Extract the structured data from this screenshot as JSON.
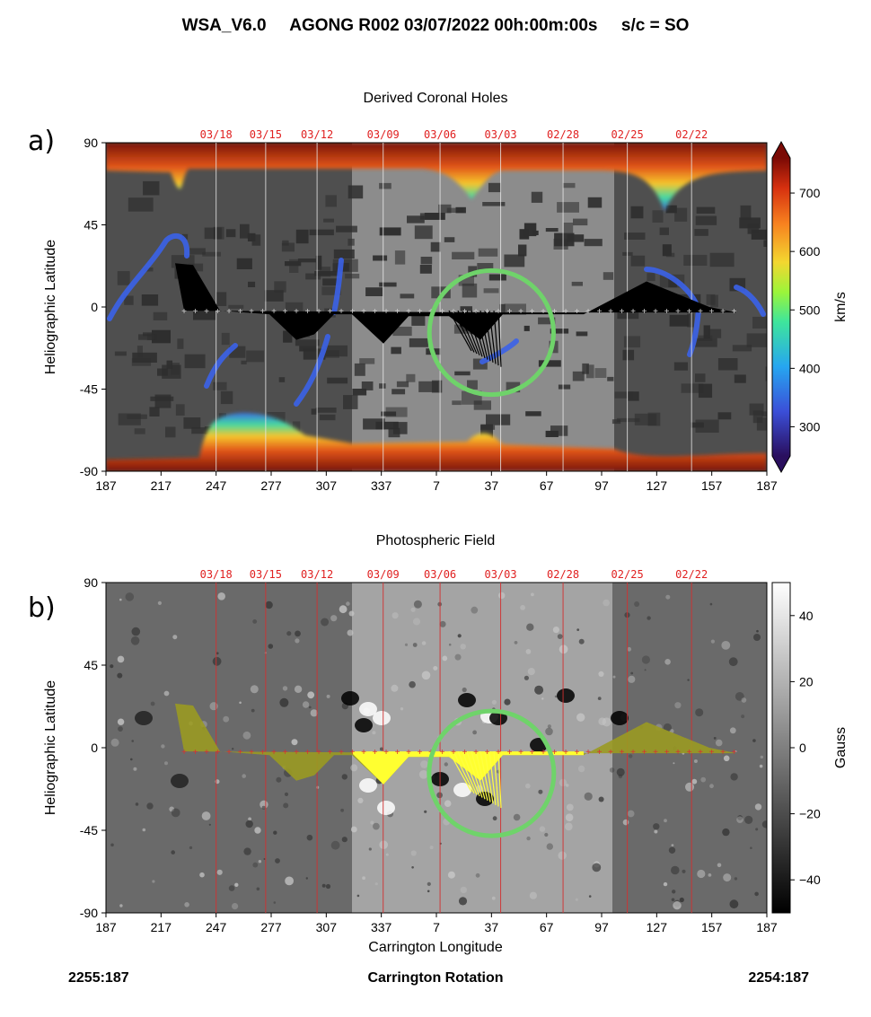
{
  "header": {
    "title": "WSA_V6.0     AGONG R002 03/07/2022 00h:00m:00s     s/c = SO"
  },
  "colors": {
    "date_label": "#e02020",
    "circle": "#6fd36a",
    "track_a": "#000000",
    "track_b_bright": "#ffff30",
    "track_b_dim": "#9a9a22"
  },
  "chart_data": [
    {
      "id": "a",
      "type": "heatmap",
      "panel_letter": "a)",
      "title": "Derived Coronal Holes",
      "xlabel": "",
      "ylabel": "Heliographic Latitude",
      "x_ticks": [
        "187",
        "217",
        "247",
        "277",
        "307",
        "337",
        "7",
        "37",
        "67",
        "97",
        "127",
        "157",
        "187"
      ],
      "y_ticks": [
        "90",
        "45",
        "0",
        "-45",
        "-90"
      ],
      "ylim": [
        -90,
        90
      ],
      "date_labels": [
        {
          "label": "03/18",
          "lon": 247
        },
        {
          "label": "03/15",
          "lon": 274
        },
        {
          "label": "03/12",
          "lon": 302
        },
        {
          "label": "03/09",
          "lon": 338
        },
        {
          "label": "03/06",
          "lon": 9
        },
        {
          "label": "03/03",
          "lon": 42
        },
        {
          "label": "02/28",
          "lon": 76
        },
        {
          "label": "02/25",
          "lon": 111
        },
        {
          "label": "02/22",
          "lon": 146
        }
      ],
      "colorbar": {
        "label": "km/s",
        "ticks": [
          "700",
          "600",
          "500",
          "400",
          "300"
        ],
        "range": [
          250,
          760
        ]
      },
      "circle": {
        "center_lon": 37,
        "center_lat": -14,
        "radius_deg": 34
      }
    },
    {
      "id": "b",
      "type": "heatmap",
      "panel_letter": "b)",
      "title": "Photospheric Field",
      "xlabel": "Carrington Longitude",
      "ylabel": "Heliographic Latitude",
      "x_ticks": [
        "187",
        "217",
        "247",
        "277",
        "307",
        "337",
        "7",
        "37",
        "67",
        "97",
        "127",
        "157",
        "187"
      ],
      "y_ticks": [
        "90",
        "45",
        "0",
        "-45",
        "-90"
      ],
      "ylim": [
        -90,
        90
      ],
      "date_labels": [
        {
          "label": "03/18",
          "lon": 247
        },
        {
          "label": "03/15",
          "lon": 274
        },
        {
          "label": "03/12",
          "lon": 302
        },
        {
          "label": "03/09",
          "lon": 338
        },
        {
          "label": "03/06",
          "lon": 9
        },
        {
          "label": "03/03",
          "lon": 42
        },
        {
          "label": "02/28",
          "lon": 76
        },
        {
          "label": "02/25",
          "lon": 111
        },
        {
          "label": "02/22",
          "lon": 146
        }
      ],
      "colorbar": {
        "label": "Gauss",
        "ticks": [
          "40",
          "20",
          "0",
          "−20",
          "−40"
        ],
        "range": [
          -50,
          50
        ]
      },
      "circle": {
        "center_lon": 37,
        "center_lat": -14,
        "radius_deg": 34
      }
    }
  ],
  "footer": {
    "left": "2255:187",
    "center": "Carrington Rotation",
    "right": "2254:187"
  }
}
